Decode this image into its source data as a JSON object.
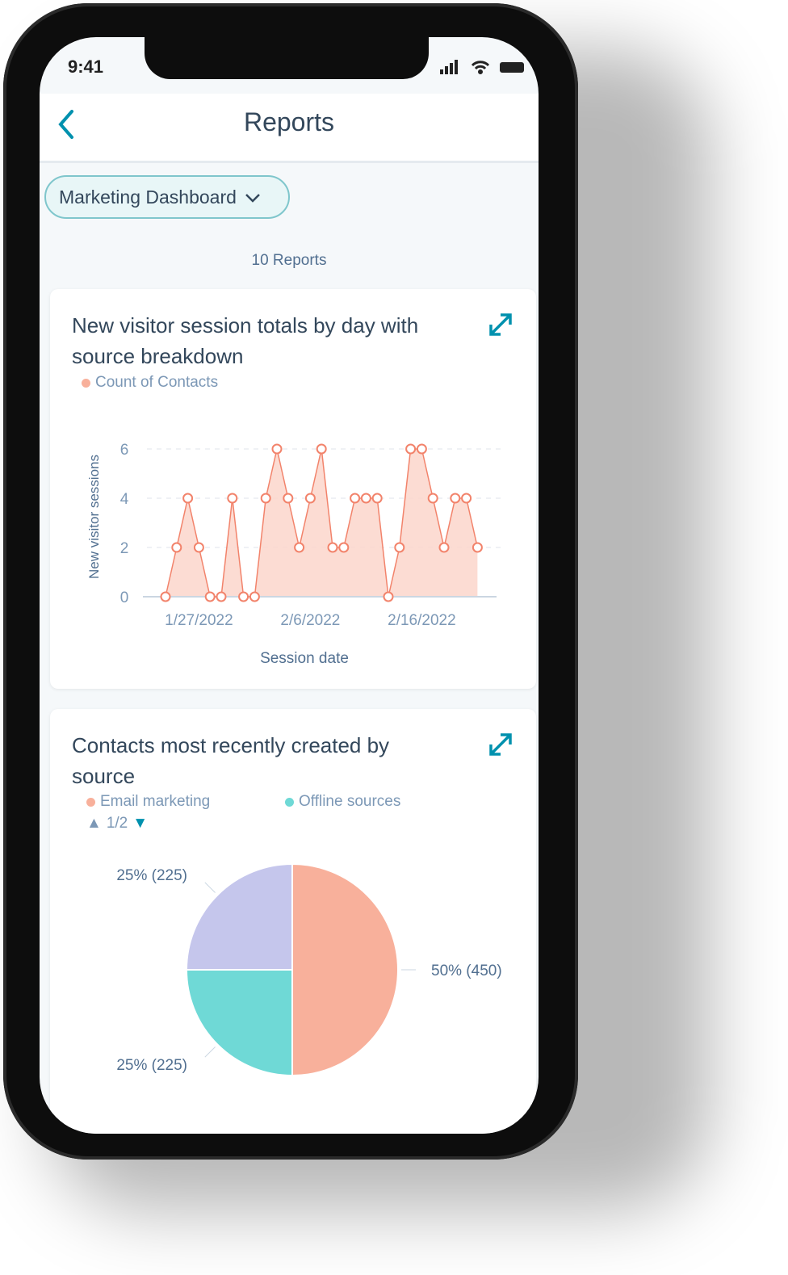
{
  "status_bar": {
    "time": "9:41"
  },
  "header": {
    "title": "Reports"
  },
  "dashboard_selector": {
    "label": "Marketing Dashboard"
  },
  "report_count": "10 Reports",
  "colors": {
    "accent": "#0091ae",
    "line": "#f2836b",
    "area": "#fcd6cb",
    "email": "#f8b09b",
    "offline": "#6fd9d6",
    "other": "#c5c6ec"
  },
  "chart_data": [
    {
      "type": "area",
      "title": "New visitor session totals by day with source breakdown",
      "legend": [
        "Count of Contacts"
      ],
      "xlabel": "Session date",
      "ylabel": "New visitor sessions",
      "ylim": [
        0,
        6
      ],
      "yticks": [
        0,
        2,
        4,
        6
      ],
      "x_start": "1/24/2022",
      "xticks": [
        {
          "index": 3,
          "label": "1/27/2022"
        },
        {
          "index": 13,
          "label": "2/6/2022"
        },
        {
          "index": 23,
          "label": "2/16/2022"
        }
      ],
      "values": [
        0,
        2,
        4,
        2,
        0,
        0,
        4,
        0,
        0,
        4,
        6,
        4,
        2,
        4,
        6,
        2,
        2,
        4,
        4,
        4,
        0,
        2,
        6,
        6,
        4,
        2,
        4,
        4,
        2
      ]
    },
    {
      "type": "pie",
      "title": "Contacts most recently created by source",
      "legend": [
        "Email marketing",
        "Offline sources"
      ],
      "legend_page": "1/2",
      "slices": [
        {
          "name": "Email marketing",
          "percent": 50,
          "value": 450,
          "label": "50% (450)"
        },
        {
          "name": "Offline sources",
          "percent": 25,
          "value": 225,
          "label": "25% (225)"
        },
        {
          "name": "",
          "percent": 25,
          "value": 225,
          "label": "25% (225)"
        }
      ]
    }
  ]
}
